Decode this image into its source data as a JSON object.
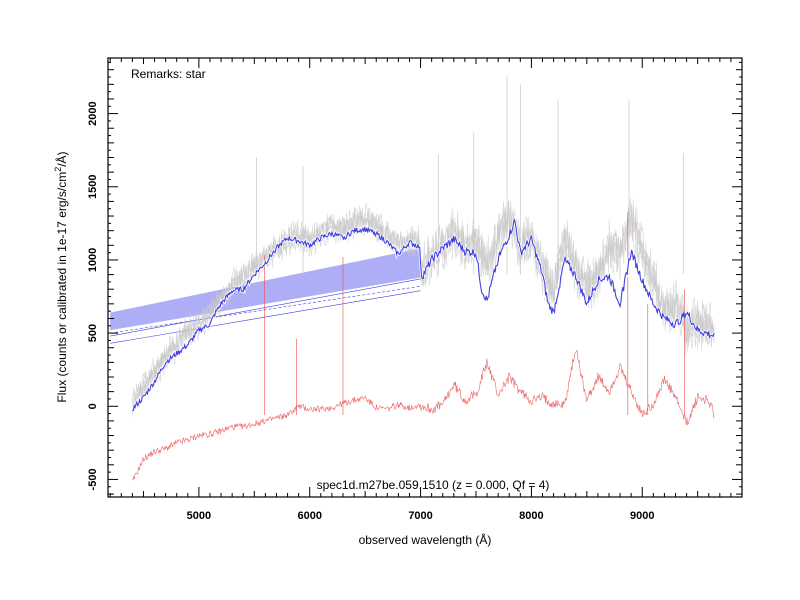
{
  "chart_data": {
    "type": "line",
    "remarks": "Remarks: star",
    "caption": "spec1d.m27be.059.1510 (z = 0.000, Qf = 4)",
    "xlabel": "observed wavelength (Å)",
    "ylabel_main": "Flux (counts or calibrated in 1e-17 erg/s/cm",
    "ylabel_sup": "2",
    "ylabel_end": "/Å)",
    "xlim": [
      4180,
      9900
    ],
    "ylim": [
      -620,
      2380
    ],
    "xticks": [
      5000,
      6000,
      7000,
      8000,
      9000
    ],
    "yticks": [
      -500,
      0,
      500,
      1000,
      1500,
      2000
    ],
    "colors": {
      "raw": "#c8c8c8",
      "smoothed": "#4040e0",
      "band": "#a0a0f4",
      "error": "#e84a4a"
    },
    "series": [
      {
        "key": "raw",
        "x": [
          4400,
          4500,
          4600,
          4700,
          4800,
          4900,
          5000,
          5100,
          5200,
          5300,
          5400,
          5500,
          5600,
          5700,
          5800,
          5900,
          6000,
          6100,
          6200,
          6300,
          6400,
          6500,
          6600,
          6700,
          6800,
          6900,
          6990,
          7010,
          7100,
          7200,
          7300,
          7400,
          7500,
          7600,
          7700,
          7800,
          7900,
          8000,
          8100,
          8200,
          8300,
          8400,
          8500,
          8600,
          8700,
          8800,
          8900,
          9000,
          9100,
          9200,
          9300,
          9400,
          9500,
          9650
        ],
        "y": [
          0,
          120,
          230,
          330,
          420,
          520,
          560,
          640,
          720,
          830,
          900,
          960,
          1020,
          1080,
          1140,
          1160,
          1130,
          1180,
          1240,
          1210,
          1250,
          1280,
          1230,
          1170,
          1100,
          1120,
          1120,
          920,
          1020,
          1100,
          1200,
          1080,
          1130,
          980,
          1150,
          1300,
          1080,
          1160,
          940,
          800,
          1140,
          940,
          820,
          880,
          1100,
          1050,
          1280,
          1050,
          850,
          640,
          700,
          520,
          580,
          500
        ]
      },
      {
        "key": "smoothed",
        "x": [
          4400,
          4500,
          4600,
          4700,
          4800,
          4900,
          5000,
          5100,
          5150,
          5200,
          5300,
          5400,
          5500,
          5600,
          5700,
          5800,
          5900,
          6000,
          6100,
          6200,
          6300,
          6400,
          6500,
          6600,
          6700,
          6800,
          6900,
          6990,
          7010,
          7100,
          7200,
          7300,
          7400,
          7500,
          7550,
          7600,
          7700,
          7800,
          7850,
          7900,
          8000,
          8100,
          8150,
          8200,
          8300,
          8400,
          8500,
          8600,
          8700,
          8800,
          8900,
          9000,
          9100,
          9200,
          9300,
          9400,
          9500,
          9650
        ],
        "y": [
          -20,
          60,
          170,
          300,
          360,
          420,
          520,
          560,
          640,
          700,
          790,
          800,
          900,
          980,
          1080,
          1150,
          1130,
          1100,
          1150,
          1180,
          1150,
          1200,
          1210,
          1180,
          1120,
          1040,
          1120,
          1090,
          880,
          1000,
          1080,
          1140,
          1060,
          1050,
          800,
          720,
          1010,
          1170,
          1270,
          1050,
          1140,
          900,
          700,
          640,
          1000,
          890,
          700,
          860,
          890,
          700,
          1060,
          860,
          700,
          600,
          560,
          640,
          520,
          480
        ]
      },
      {
        "key": "error",
        "x": [
          4400,
          4500,
          4600,
          4700,
          4800,
          4900,
          5000,
          5100,
          5200,
          5300,
          5400,
          5500,
          5600,
          5700,
          5800,
          5900,
          6000,
          6100,
          6200,
          6300,
          6400,
          6500,
          6600,
          6700,
          6800,
          6900,
          6990,
          7010,
          7100,
          7200,
          7300,
          7400,
          7500,
          7600,
          7700,
          7800,
          7900,
          8000,
          8100,
          8200,
          8300,
          8400,
          8500,
          8600,
          8700,
          8800,
          8900,
          9000,
          9100,
          9200,
          9300,
          9400,
          9500,
          9600,
          9650
        ],
        "y": [
          -520,
          -360,
          -310,
          -290,
          -250,
          -230,
          -200,
          -190,
          -170,
          -140,
          -140,
          -120,
          -100,
          -80,
          -60,
          0,
          -20,
          -20,
          -10,
          20,
          40,
          60,
          -10,
          -20,
          10,
          -10,
          10,
          0,
          -20,
          10,
          150,
          40,
          80,
          300,
          80,
          200,
          100,
          40,
          60,
          20,
          10,
          400,
          40,
          200,
          100,
          260,
          100,
          -60,
          20,
          180,
          60,
          -120,
          60,
          40,
          -60
        ]
      }
    ],
    "band": {
      "start_x": 4200,
      "end_x": 7000,
      "start_low": 520,
      "start_high": 640,
      "end_low": 880,
      "end_high": 1080
    },
    "thin_lines": [
      {
        "x1": 4200,
        "y1": 500,
        "x2": 7000,
        "y2": 820,
        "style": "dashed"
      },
      {
        "x1": 4200,
        "y1": 480,
        "x2": 7000,
        "y2": 870,
        "style": "solid"
      },
      {
        "x1": 4200,
        "y1": 430,
        "x2": 7000,
        "y2": 790,
        "style": "solid"
      }
    ],
    "error_spikes": [
      {
        "x": 5590,
        "y": 1030
      },
      {
        "x": 5880,
        "y": 460
      },
      {
        "x": 6300,
        "y": 1020
      },
      {
        "x": 8870,
        "y": 1330
      },
      {
        "x": 9050,
        "y": 700
      },
      {
        "x": 9380,
        "y": 800
      }
    ],
    "raw_spikes": [
      {
        "x": 5520,
        "y": 1700
      },
      {
        "x": 5940,
        "y": 1640
      },
      {
        "x": 7160,
        "y": 1720
      },
      {
        "x": 7480,
        "y": 1870
      },
      {
        "x": 7780,
        "y": 2260
      },
      {
        "x": 7900,
        "y": 2200
      },
      {
        "x": 8240,
        "y": 2100
      },
      {
        "x": 8880,
        "y": 2090
      },
      {
        "x": 9370,
        "y": 1730
      }
    ]
  }
}
